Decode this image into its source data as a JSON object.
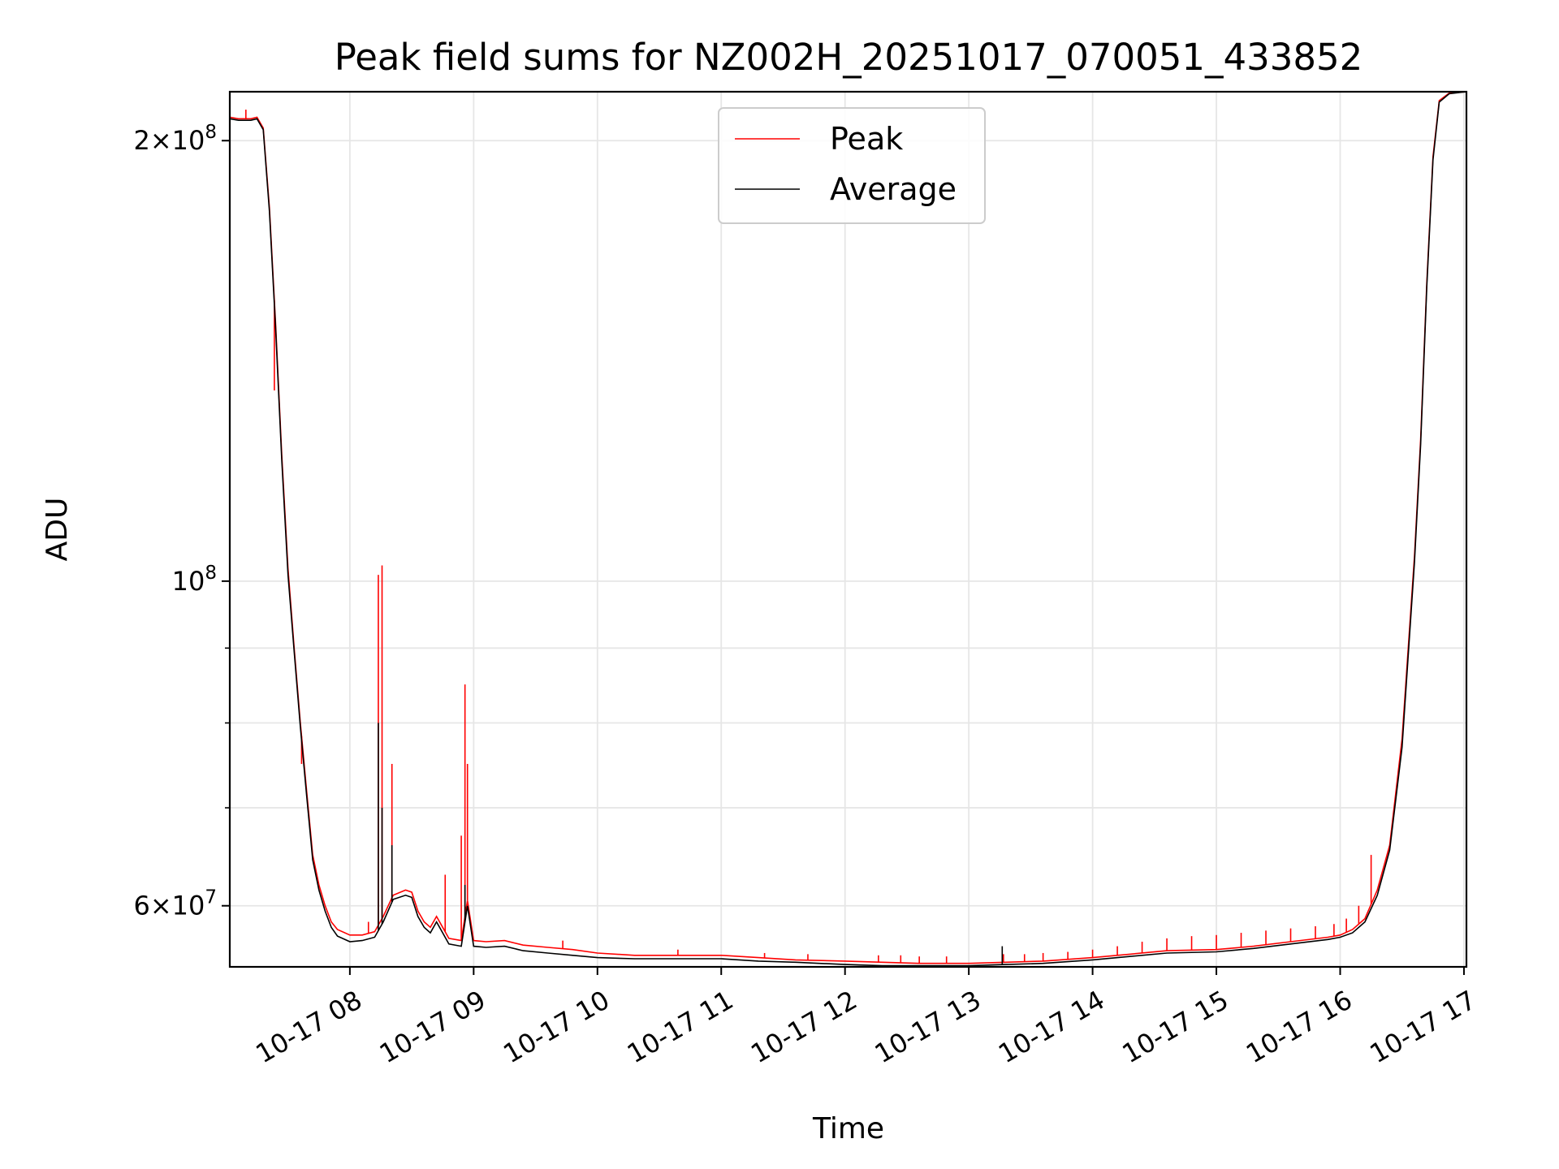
{
  "chart_data": {
    "type": "line",
    "title": "Peak field sums for NZ002H_20251017_070051_433852",
    "xlabel": "Time",
    "ylabel": "ADU",
    "yscale": "log",
    "grid": true,
    "legend_position": "top-center",
    "xlim_hours": [
      7.03,
      17.02
    ],
    "ylim": [
      54500000,
      216000000
    ],
    "x_ticks": [
      {
        "value": 8,
        "label": "10-17 08"
      },
      {
        "value": 9,
        "label": "10-17 09"
      },
      {
        "value": 10,
        "label": "10-17 10"
      },
      {
        "value": 11,
        "label": "10-17 11"
      },
      {
        "value": 12,
        "label": "10-17 12"
      },
      {
        "value": 13,
        "label": "10-17 13"
      },
      {
        "value": 14,
        "label": "10-17 14"
      },
      {
        "value": 15,
        "label": "10-17 15"
      },
      {
        "value": 16,
        "label": "10-17 16"
      },
      {
        "value": 17,
        "label": "10-17 17"
      }
    ],
    "y_major_ticks": [
      {
        "value": 200000000,
        "mant": "2",
        "exp": "8"
      },
      {
        "value": 100000000,
        "mant": "",
        "exp": "8"
      },
      {
        "value": 60000000,
        "mant": "6",
        "exp": "7"
      }
    ],
    "y_minor_ticks": [
      90000000,
      80000000,
      70000000
    ],
    "series": [
      {
        "name": "Peak",
        "color": "#ff0000",
        "points": [
          [
            7.03,
            207500000
          ],
          [
            7.1,
            207000000
          ],
          [
            7.2,
            207000000
          ],
          [
            7.25,
            207500000
          ],
          [
            7.3,
            204000000
          ],
          [
            7.35,
            180000000
          ],
          [
            7.4,
            150000000
          ],
          [
            7.45,
            122000000
          ],
          [
            7.5,
            102000000
          ],
          [
            7.55,
            90000000
          ],
          [
            7.6,
            80000000
          ],
          [
            7.65,
            72000000
          ],
          [
            7.7,
            65000000
          ],
          [
            7.75,
            62000000
          ],
          [
            7.8,
            60000000
          ],
          [
            7.85,
            58500000
          ],
          [
            7.9,
            57800000
          ],
          [
            8.0,
            57300000
          ],
          [
            8.1,
            57300000
          ],
          [
            8.2,
            57600000
          ],
          [
            8.27,
            59000000
          ],
          [
            8.35,
            61000000
          ],
          [
            8.45,
            61500000
          ],
          [
            8.5,
            61300000
          ],
          [
            8.55,
            59500000
          ],
          [
            8.6,
            58500000
          ],
          [
            8.65,
            58000000
          ],
          [
            8.7,
            59000000
          ],
          [
            8.75,
            58000000
          ],
          [
            8.8,
            57000000
          ],
          [
            8.9,
            56800000
          ],
          [
            8.95,
            60500000
          ],
          [
            9.0,
            56800000
          ],
          [
            9.1,
            56700000
          ],
          [
            9.25,
            56800000
          ],
          [
            9.4,
            56400000
          ],
          [
            9.6,
            56200000
          ],
          [
            9.8,
            56000000
          ],
          [
            10.0,
            55700000
          ],
          [
            10.3,
            55500000
          ],
          [
            10.6,
            55500000
          ],
          [
            11.0,
            55500000
          ],
          [
            11.3,
            55300000
          ],
          [
            11.6,
            55100000
          ],
          [
            12.0,
            55000000
          ],
          [
            12.3,
            54900000
          ],
          [
            12.6,
            54800000
          ],
          [
            13.0,
            54800000
          ],
          [
            13.3,
            54900000
          ],
          [
            13.6,
            55000000
          ],
          [
            14.0,
            55300000
          ],
          [
            14.3,
            55600000
          ],
          [
            14.6,
            55900000
          ],
          [
            15.0,
            56000000
          ],
          [
            15.3,
            56300000
          ],
          [
            15.6,
            56700000
          ],
          [
            15.9,
            57100000
          ],
          [
            16.0,
            57300000
          ],
          [
            16.1,
            57800000
          ],
          [
            16.2,
            58800000
          ],
          [
            16.3,
            61500000
          ],
          [
            16.4,
            66000000
          ],
          [
            16.5,
            78000000
          ],
          [
            16.6,
            104000000
          ],
          [
            16.65,
            125000000
          ],
          [
            16.7,
            160000000
          ],
          [
            16.75,
            195000000
          ],
          [
            16.8,
            213000000
          ],
          [
            16.88,
            215500000
          ],
          [
            17.02,
            216000000
          ]
        ],
        "spikes": [
          [
            7.16,
            210000000
          ],
          [
            7.39,
            135000000
          ],
          [
            7.61,
            75000000
          ],
          [
            8.15,
            58500000
          ],
          [
            8.23,
            101000000
          ],
          [
            8.26,
            102500000
          ],
          [
            8.34,
            75000000
          ],
          [
            8.77,
            63000000
          ],
          [
            8.9,
            67000000
          ],
          [
            8.93,
            85000000
          ],
          [
            8.95,
            75000000
          ],
          [
            9.72,
            56800000
          ],
          [
            10.65,
            56000000
          ],
          [
            11.35,
            55700000
          ],
          [
            11.7,
            55600000
          ],
          [
            12.27,
            55500000
          ],
          [
            12.45,
            55500000
          ],
          [
            12.6,
            55400000
          ],
          [
            12.82,
            55400000
          ],
          [
            13.28,
            55600000
          ],
          [
            13.45,
            55600000
          ],
          [
            13.6,
            55700000
          ],
          [
            13.8,
            55800000
          ],
          [
            14.0,
            56000000
          ],
          [
            14.2,
            56300000
          ],
          [
            14.4,
            56700000
          ],
          [
            14.6,
            57000000
          ],
          [
            14.8,
            57200000
          ],
          [
            15.0,
            57300000
          ],
          [
            15.2,
            57500000
          ],
          [
            15.4,
            57700000
          ],
          [
            15.6,
            57900000
          ],
          [
            15.8,
            58100000
          ],
          [
            15.95,
            58300000
          ],
          [
            16.05,
            58800000
          ],
          [
            16.15,
            60000000
          ],
          [
            16.25,
            65000000
          ]
        ]
      },
      {
        "name": "Average",
        "color": "#000000",
        "points": [
          [
            7.03,
            207000000
          ],
          [
            7.1,
            206500000
          ],
          [
            7.2,
            206500000
          ],
          [
            7.25,
            207000000
          ],
          [
            7.3,
            203500000
          ],
          [
            7.35,
            179000000
          ],
          [
            7.4,
            149000000
          ],
          [
            7.45,
            121000000
          ],
          [
            7.5,
            101000000
          ],
          [
            7.55,
            89500000
          ],
          [
            7.6,
            79500000
          ],
          [
            7.65,
            71500000
          ],
          [
            7.7,
            64500000
          ],
          [
            7.75,
            61500000
          ],
          [
            7.8,
            59500000
          ],
          [
            7.85,
            58000000
          ],
          [
            7.9,
            57200000
          ],
          [
            8.0,
            56700000
          ],
          [
            8.1,
            56800000
          ],
          [
            8.2,
            57100000
          ],
          [
            8.27,
            58500000
          ],
          [
            8.35,
            60600000
          ],
          [
            8.45,
            61000000
          ],
          [
            8.5,
            60800000
          ],
          [
            8.55,
            59000000
          ],
          [
            8.6,
            58000000
          ],
          [
            8.65,
            57500000
          ],
          [
            8.7,
            58500000
          ],
          [
            8.75,
            57500000
          ],
          [
            8.8,
            56500000
          ],
          [
            8.9,
            56300000
          ],
          [
            8.95,
            60000000
          ],
          [
            9.0,
            56300000
          ],
          [
            9.1,
            56200000
          ],
          [
            9.25,
            56300000
          ],
          [
            9.4,
            55900000
          ],
          [
            9.6,
            55700000
          ],
          [
            9.8,
            55500000
          ],
          [
            10.0,
            55300000
          ],
          [
            10.3,
            55200000
          ],
          [
            10.6,
            55200000
          ],
          [
            11.0,
            55200000
          ],
          [
            11.3,
            55000000
          ],
          [
            11.6,
            54900000
          ],
          [
            12.0,
            54700000
          ],
          [
            12.3,
            54600000
          ],
          [
            12.6,
            54600000
          ],
          [
            13.0,
            54600000
          ],
          [
            13.3,
            54700000
          ],
          [
            13.6,
            54800000
          ],
          [
            14.0,
            55100000
          ],
          [
            14.3,
            55400000
          ],
          [
            14.6,
            55700000
          ],
          [
            15.0,
            55800000
          ],
          [
            15.3,
            56100000
          ],
          [
            15.6,
            56500000
          ],
          [
            15.9,
            56900000
          ],
          [
            16.0,
            57100000
          ],
          [
            16.1,
            57500000
          ],
          [
            16.2,
            58500000
          ],
          [
            16.3,
            61000000
          ],
          [
            16.4,
            65500000
          ],
          [
            16.5,
            77000000
          ],
          [
            16.6,
            103000000
          ],
          [
            16.65,
            124000000
          ],
          [
            16.7,
            159000000
          ],
          [
            16.75,
            194000000
          ],
          [
            16.8,
            212500000
          ],
          [
            16.88,
            215300000
          ],
          [
            17.02,
            216000000
          ]
        ],
        "spikes": [
          [
            8.23,
            80000000
          ],
          [
            8.26,
            70000000
          ],
          [
            8.34,
            66000000
          ],
          [
            8.93,
            62000000
          ],
          [
            13.27,
            56300000
          ]
        ]
      }
    ]
  }
}
